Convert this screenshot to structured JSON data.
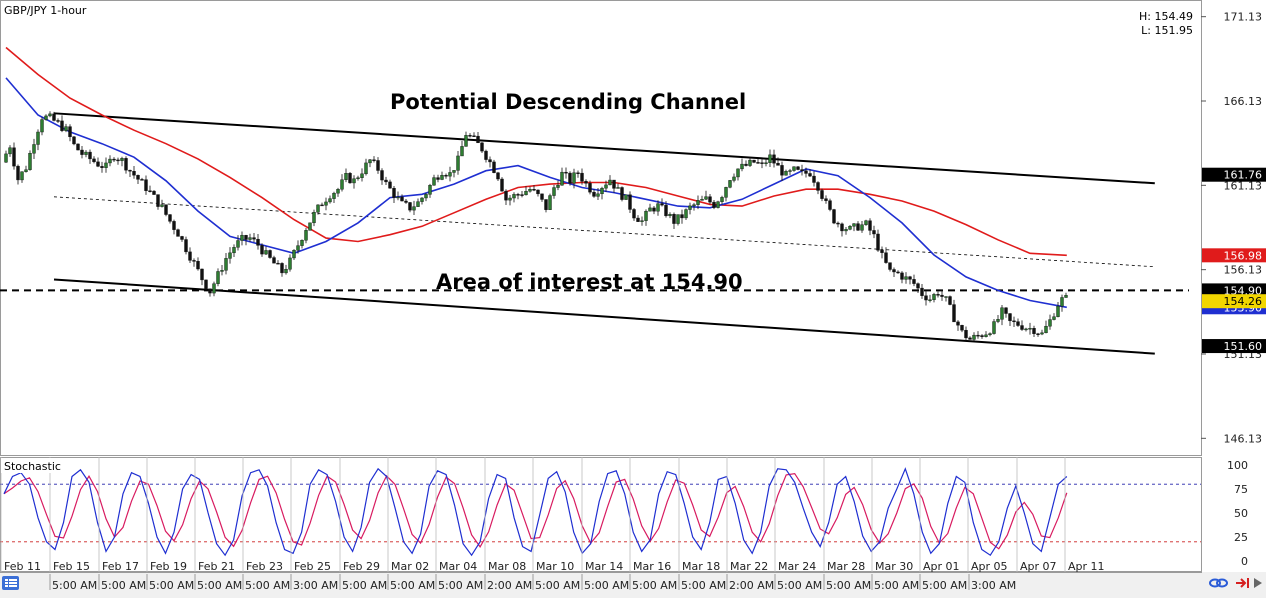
{
  "window": {
    "symbol_label": "GBP/JPY 1-hour",
    "high_label": "H: 154.49",
    "low_label": "L: 151.95",
    "indicator_label": "Stochastic"
  },
  "colors": {
    "candle_up": "#2e7d32",
    "candle_down": "#111111",
    "ma_fast": "#1f2fd1",
    "ma_slow": "#e01b1b",
    "stoch_k": "#1f2fd1",
    "stoch_d": "#d81b60",
    "tag_dark": "#000000",
    "tag_red": "#e01b1b",
    "tag_blue": "#1f2fd1",
    "tag_yellow": "#f2d600",
    "stoch_upper_line": "#2222aa",
    "stoch_lower_line": "#cc2222"
  },
  "chart_data": {
    "type": "line",
    "title": "",
    "annotations": [
      "Potential Descending Channel",
      "Area of interest at 154.90"
    ],
    "price_axis": {
      "ticks": [
        "171.13",
        "166.13",
        "161.13",
        "156.13",
        "151.13",
        "146.13"
      ],
      "range": [
        145.2,
        172.0
      ]
    },
    "tags": [
      {
        "label": "161.76",
        "value": 161.76,
        "style": "dark"
      },
      {
        "label": "156.98",
        "value": 156.98,
        "style": "red"
      },
      {
        "label": "154.90",
        "value": 154.9,
        "style": "dark"
      },
      {
        "label": "154.26",
        "value": 154.26,
        "style": "yellow"
      },
      {
        "label": "153.90",
        "value": 153.9,
        "style": "blue"
      },
      {
        "label": "151.60",
        "value": 151.6,
        "style": "dark"
      }
    ],
    "date_labels": [
      "Feb 11",
      "Feb 15",
      "Feb 17",
      "Feb 19",
      "Feb 21",
      "Feb 23",
      "Feb 25",
      "Feb 29",
      "Mar 02",
      "Mar 04",
      "Mar 08",
      "Mar 10",
      "Mar 14",
      "Mar 16",
      "Mar 18",
      "Mar 22",
      "Mar 24",
      "Mar 28",
      "Mar 30",
      "Apr 01",
      "Apr 05",
      "Apr 07",
      "Apr 11"
    ],
    "time_labels": [
      "5:00 AM",
      "5:00 AM",
      "5:00 AM",
      "5:00 AM",
      "5:00 AM",
      "3:00 AM",
      "5:00 AM",
      "5:00 AM",
      "5:00 AM",
      "2:00 AM",
      "5:00 AM",
      "5:00 AM",
      "5:00 AM",
      "5:00 AM",
      "2:00 AM",
      "5:00 AM",
      "5:00 AM",
      "5:00 AM",
      "5:00 AM",
      "3:00 AM"
    ],
    "price_path": [
      {
        "d": 0.0,
        "p": 162.5
      },
      {
        "d": 0.5,
        "p": 163.5
      },
      {
        "d": 1.0,
        "p": 161.5
      },
      {
        "d": 1.5,
        "p": 162.2
      },
      {
        "d": 2.0,
        "p": 163.8
      },
      {
        "d": 2.5,
        "p": 165.2
      },
      {
        "d": 3.0,
        "p": 165.1
      },
      {
        "d": 3.5,
        "p": 164.8
      },
      {
        "d": 4.0,
        "p": 164.4
      },
      {
        "d": 4.5,
        "p": 163.5
      },
      {
        "d": 5.0,
        "p": 163.0
      },
      {
        "d": 5.5,
        "p": 162.7
      },
      {
        "d": 6.0,
        "p": 162.4
      },
      {
        "d": 6.5,
        "p": 162.2
      },
      {
        "d": 7.0,
        "p": 162.9
      },
      {
        "d": 7.5,
        "p": 162.6
      },
      {
        "d": 8.0,
        "p": 162.0
      },
      {
        "d": 8.5,
        "p": 161.5
      },
      {
        "d": 9.0,
        "p": 161.0
      },
      {
        "d": 9.5,
        "p": 160.4
      },
      {
        "d": 10.0,
        "p": 159.8
      },
      {
        "d": 10.5,
        "p": 159.0
      },
      {
        "d": 11.0,
        "p": 158.3
      },
      {
        "d": 11.5,
        "p": 157.4
      },
      {
        "d": 12.0,
        "p": 156.5
      },
      {
        "d": 12.5,
        "p": 155.6
      },
      {
        "d": 13.0,
        "p": 154.85
      },
      {
        "d": 13.5,
        "p": 155.8
      },
      {
        "d": 14.0,
        "p": 156.8
      },
      {
        "d": 14.5,
        "p": 157.5
      },
      {
        "d": 15.0,
        "p": 157.9
      },
      {
        "d": 15.5,
        "p": 158.0
      },
      {
        "d": 16.0,
        "p": 157.6
      },
      {
        "d": 16.5,
        "p": 157.0
      },
      {
        "d": 17.0,
        "p": 156.5
      },
      {
        "d": 17.5,
        "p": 156.0
      },
      {
        "d": 18.0,
        "p": 156.6
      },
      {
        "d": 18.5,
        "p": 157.6
      },
      {
        "d": 19.0,
        "p": 158.6
      },
      {
        "d": 19.5,
        "p": 159.4
      },
      {
        "d": 20.0,
        "p": 160.1
      },
      {
        "d": 20.5,
        "p": 160.6
      },
      {
        "d": 21.0,
        "p": 160.9
      },
      {
        "d": 21.5,
        "p": 161.6
      },
      {
        "d": 22.0,
        "p": 161.4
      },
      {
        "d": 22.5,
        "p": 162.0
      },
      {
        "d": 23.0,
        "p": 162.6
      },
      {
        "d": 23.5,
        "p": 162.1
      },
      {
        "d": 24.0,
        "p": 161.2
      },
      {
        "d": 24.5,
        "p": 160.6
      },
      {
        "d": 25.0,
        "p": 160.0
      },
      {
        "d": 25.5,
        "p": 159.8
      },
      {
        "d": 26.0,
        "p": 160.1
      },
      {
        "d": 26.5,
        "p": 160.7
      },
      {
        "d": 27.0,
        "p": 161.5
      },
      {
        "d": 27.5,
        "p": 162.0
      },
      {
        "d": 28.0,
        "p": 161.8
      },
      {
        "d": 28.5,
        "p": 162.6
      },
      {
        "d": 29.0,
        "p": 164.2
      },
      {
        "d": 29.5,
        "p": 163.8
      },
      {
        "d": 30.0,
        "p": 163.3
      },
      {
        "d": 30.5,
        "p": 162.5
      },
      {
        "d": 31.0,
        "p": 161.7
      },
      {
        "d": 31.5,
        "p": 160.3
      },
      {
        "d": 32.0,
        "p": 160.5
      },
      {
        "d": 32.5,
        "p": 160.7
      },
      {
        "d": 33.0,
        "p": 160.9
      },
      {
        "d": 33.5,
        "p": 160.5
      },
      {
        "d": 34.0,
        "p": 159.8
      },
      {
        "d": 34.5,
        "p": 161.0
      },
      {
        "d": 35.0,
        "p": 161.8
      },
      {
        "d": 35.5,
        "p": 161.4
      },
      {
        "d": 36.0,
        "p": 161.9
      },
      {
        "d": 36.5,
        "p": 161.2
      },
      {
        "d": 37.0,
        "p": 160.7
      },
      {
        "d": 37.5,
        "p": 161.1
      },
      {
        "d": 38.0,
        "p": 161.5
      },
      {
        "d": 38.5,
        "p": 160.8
      },
      {
        "d": 39.0,
        "p": 160.3
      },
      {
        "d": 39.5,
        "p": 159.4
      },
      {
        "d": 40.0,
        "p": 159.0
      },
      {
        "d": 40.5,
        "p": 159.7
      },
      {
        "d": 41.0,
        "p": 159.9
      },
      {
        "d": 41.5,
        "p": 159.5
      },
      {
        "d": 42.0,
        "p": 159.0
      },
      {
        "d": 42.5,
        "p": 159.3
      },
      {
        "d": 43.0,
        "p": 159.8
      },
      {
        "d": 43.5,
        "p": 160.1
      },
      {
        "d": 44.0,
        "p": 160.3
      },
      {
        "d": 44.5,
        "p": 160.0
      },
      {
        "d": 45.0,
        "p": 160.6
      },
      {
        "d": 45.5,
        "p": 161.6
      },
      {
        "d": 46.0,
        "p": 162.1
      },
      {
        "d": 46.5,
        "p": 162.3
      },
      {
        "d": 47.0,
        "p": 162.5
      },
      {
        "d": 47.5,
        "p": 162.3
      },
      {
        "d": 48.0,
        "p": 162.8
      },
      {
        "d": 48.5,
        "p": 162.2
      },
      {
        "d": 49.0,
        "p": 161.7
      },
      {
        "d": 49.5,
        "p": 162.0
      },
      {
        "d": 50.0,
        "p": 161.8
      },
      {
        "d": 50.5,
        "p": 161.9
      },
      {
        "d": 51.0,
        "p": 161.1
      },
      {
        "d": 51.5,
        "p": 160.0
      },
      {
        "d": 52.0,
        "p": 159.1
      },
      {
        "d": 52.5,
        "p": 158.7
      },
      {
        "d": 53.0,
        "p": 158.5
      },
      {
        "d": 53.5,
        "p": 158.7
      },
      {
        "d": 54.0,
        "p": 158.8
      },
      {
        "d": 54.5,
        "p": 158.1
      },
      {
        "d": 55.0,
        "p": 156.9
      },
      {
        "d": 55.5,
        "p": 156.0
      },
      {
        "d": 56.0,
        "p": 155.9
      },
      {
        "d": 56.5,
        "p": 155.6
      },
      {
        "d": 57.0,
        "p": 155.3
      },
      {
        "d": 57.5,
        "p": 154.7
      },
      {
        "d": 58.0,
        "p": 154.4
      },
      {
        "d": 58.5,
        "p": 154.8
      },
      {
        "d": 59.0,
        "p": 154.3
      },
      {
        "d": 59.5,
        "p": 153.3
      },
      {
        "d": 60.0,
        "p": 152.4
      },
      {
        "d": 60.5,
        "p": 152.0
      },
      {
        "d": 61.0,
        "p": 152.2
      },
      {
        "d": 61.5,
        "p": 152.4
      },
      {
        "d": 62.0,
        "p": 152.8
      },
      {
        "d": 62.5,
        "p": 153.6
      },
      {
        "d": 63.0,
        "p": 153.0
      },
      {
        "d": 63.5,
        "p": 152.9
      },
      {
        "d": 64.0,
        "p": 152.7
      },
      {
        "d": 64.5,
        "p": 152.6
      },
      {
        "d": 65.0,
        "p": 152.3
      },
      {
        "d": 65.5,
        "p": 153.1
      },
      {
        "d": 66.0,
        "p": 154.1
      },
      {
        "d": 66.3,
        "p": 154.4
      }
    ],
    "ma_fast": [
      {
        "d": 0,
        "p": 167.5
      },
      {
        "d": 2,
        "p": 165.3
      },
      {
        "d": 4,
        "p": 164.3
      },
      {
        "d": 6,
        "p": 163.6
      },
      {
        "d": 8,
        "p": 162.8
      },
      {
        "d": 10,
        "p": 161.4
      },
      {
        "d": 12,
        "p": 159.6
      },
      {
        "d": 14,
        "p": 158.1
      },
      {
        "d": 16,
        "p": 157.6
      },
      {
        "d": 18,
        "p": 157.1
      },
      {
        "d": 20,
        "p": 157.8
      },
      {
        "d": 22,
        "p": 158.9
      },
      {
        "d": 24,
        "p": 160.4
      },
      {
        "d": 26,
        "p": 160.6
      },
      {
        "d": 28,
        "p": 161.2
      },
      {
        "d": 30,
        "p": 162.0
      },
      {
        "d": 32,
        "p": 162.3
      },
      {
        "d": 34,
        "p": 161.6
      },
      {
        "d": 36,
        "p": 161.0
      },
      {
        "d": 38,
        "p": 160.7
      },
      {
        "d": 40,
        "p": 160.3
      },
      {
        "d": 42,
        "p": 159.9
      },
      {
        "d": 44,
        "p": 159.8
      },
      {
        "d": 46,
        "p": 160.3
      },
      {
        "d": 48,
        "p": 161.2
      },
      {
        "d": 50,
        "p": 162.1
      },
      {
        "d": 52,
        "p": 161.7
      },
      {
        "d": 54,
        "p": 160.4
      },
      {
        "d": 56,
        "p": 158.9
      },
      {
        "d": 58,
        "p": 157.0
      },
      {
        "d": 60,
        "p": 155.7
      },
      {
        "d": 62,
        "p": 154.9
      },
      {
        "d": 64,
        "p": 154.3
      },
      {
        "d": 66.3,
        "p": 153.9
      }
    ],
    "ma_slow": [
      {
        "d": 0,
        "p": 169.3
      },
      {
        "d": 2,
        "p": 167.7
      },
      {
        "d": 4,
        "p": 166.3
      },
      {
        "d": 6,
        "p": 165.3
      },
      {
        "d": 8,
        "p": 164.4
      },
      {
        "d": 10,
        "p": 163.6
      },
      {
        "d": 12,
        "p": 162.7
      },
      {
        "d": 14,
        "p": 161.6
      },
      {
        "d": 16,
        "p": 160.4
      },
      {
        "d": 18,
        "p": 159.1
      },
      {
        "d": 20,
        "p": 158.0
      },
      {
        "d": 22,
        "p": 157.8
      },
      {
        "d": 24,
        "p": 158.2
      },
      {
        "d": 26,
        "p": 158.7
      },
      {
        "d": 28,
        "p": 159.5
      },
      {
        "d": 30,
        "p": 160.3
      },
      {
        "d": 32,
        "p": 161.0
      },
      {
        "d": 34,
        "p": 161.2
      },
      {
        "d": 36,
        "p": 161.3
      },
      {
        "d": 38,
        "p": 161.3
      },
      {
        "d": 40,
        "p": 161.0
      },
      {
        "d": 42,
        "p": 160.5
      },
      {
        "d": 44,
        "p": 160.0
      },
      {
        "d": 46,
        "p": 159.9
      },
      {
        "d": 48,
        "p": 160.5
      },
      {
        "d": 50,
        "p": 160.9
      },
      {
        "d": 52,
        "p": 160.9
      },
      {
        "d": 54,
        "p": 160.6
      },
      {
        "d": 56,
        "p": 160.2
      },
      {
        "d": 58,
        "p": 159.6
      },
      {
        "d": 60,
        "p": 158.8
      },
      {
        "d": 62,
        "p": 157.9
      },
      {
        "d": 64,
        "p": 157.1
      },
      {
        "d": 66.3,
        "p": 156.98
      }
    ],
    "channel_upper": [
      {
        "d": 3.0,
        "p": 165.4
      },
      {
        "d": 71.8,
        "p": 161.25
      }
    ],
    "channel_lower": [
      {
        "d": 3.0,
        "p": 155.55
      },
      {
        "d": 71.8,
        "p": 151.15
      }
    ],
    "channel_mid": [
      {
        "d": 3.0,
        "p": 160.45
      },
      {
        "d": 71.8,
        "p": 156.3
      }
    ],
    "area_of_interest": 154.9,
    "stochastic": {
      "axis_ticks": [
        "100",
        "75",
        "50",
        "25",
        "0"
      ],
      "levels": [
        80,
        20
      ],
      "k": [
        70,
        88,
        92,
        80,
        45,
        20,
        12,
        40,
        88,
        95,
        82,
        40,
        10,
        25,
        70,
        92,
        88,
        60,
        25,
        8,
        30,
        75,
        90,
        85,
        50,
        18,
        6,
        22,
        68,
        92,
        95,
        78,
        40,
        12,
        8,
        30,
        80,
        95,
        90,
        62,
        25,
        10,
        35,
        82,
        96,
        88,
        55,
        20,
        8,
        28,
        78,
        94,
        90,
        58,
        18,
        6,
        20,
        65,
        90,
        86,
        45,
        15,
        10,
        48,
        86,
        93,
        72,
        30,
        8,
        18,
        62,
        91,
        94,
        70,
        30,
        10,
        22,
        70,
        93,
        90,
        60,
        25,
        12,
        40,
        85,
        88,
        60,
        22,
        8,
        30,
        78,
        96,
        95,
        82,
        55,
        30,
        15,
        40,
        80,
        88,
        62,
        26,
        10,
        20,
        55,
        75,
        96,
        70,
        30,
        8,
        18,
        60,
        88,
        82,
        40,
        12,
        6,
        20,
        55,
        78,
        50,
        18,
        10,
        45,
        80,
        88
      ]
    }
  }
}
